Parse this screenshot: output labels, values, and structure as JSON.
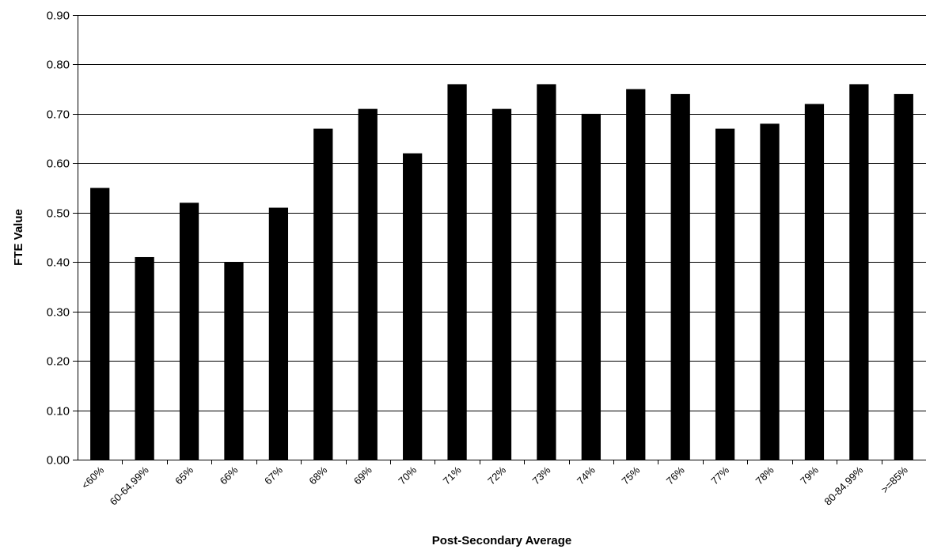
{
  "colors": {
    "bar": "#000000",
    "grid": "#000000",
    "background": "#ffffff"
  },
  "chart_data": {
    "type": "bar",
    "title": "",
    "xlabel": "Post-Secondary Average",
    "ylabel": "FTE Value",
    "ylim": [
      0,
      0.9
    ],
    "yticks": [
      "0.00",
      "0.10",
      "0.20",
      "0.30",
      "0.40",
      "0.50",
      "0.60",
      "0.70",
      "0.80",
      "0.90"
    ],
    "grid": true,
    "legend": "none",
    "categories": [
      "<60%",
      "60-64.99%",
      "65%",
      "66%",
      "67%",
      "68%",
      "69%",
      "70%",
      "71%",
      "72%",
      "73%",
      "74%",
      "75%",
      "76%",
      "77%",
      "78%",
      "79%",
      "80-84.99%",
      ">=85%"
    ],
    "values": [
      0.55,
      0.41,
      0.52,
      0.4,
      0.51,
      0.67,
      0.71,
      0.62,
      0.76,
      0.71,
      0.76,
      0.7,
      0.75,
      0.74,
      0.67,
      0.68,
      0.72,
      0.76,
      0.74
    ]
  }
}
